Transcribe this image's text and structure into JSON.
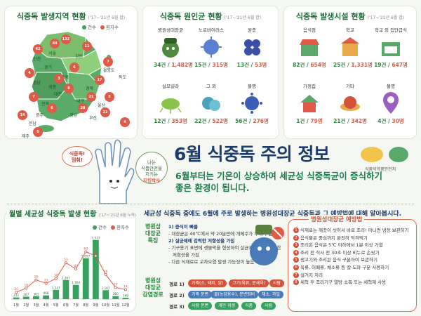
{
  "panels": {
    "region": {
      "title": "식중독 발생지역 현황",
      "sub": "('17~'21년 6월 합)",
      "legend_cases": "건수",
      "legend_patients": "환자수",
      "regions": [
        "인천",
        "서울",
        "경기",
        "강원",
        "충북",
        "충남",
        "세종",
        "대전",
        "경북",
        "대구",
        "전북",
        "울산",
        "광주",
        "경남",
        "부산",
        "전남",
        "제주",
        "울릉도",
        "독도"
      ],
      "counts": [
        "42",
        "84",
        "132",
        "11",
        "6",
        "4",
        "3",
        "8",
        "17",
        "21",
        "7",
        "5",
        "6",
        "28",
        "23",
        "14",
        "5",
        "7",
        "4"
      ]
    },
    "pathogen": {
      "title": "식중독 원인균 현황",
      "sub": "('17~'21년 6월 합)",
      "items": [
        {
          "name": "병원성대장균",
          "cases": "34건",
          "patients": "1,482명"
        },
        {
          "name": "노로바이러스",
          "cases": "15건",
          "patients": "315명"
        },
        {
          "name": "원충",
          "cases": "13건",
          "patients": "53명"
        },
        {
          "name": "살모넬라",
          "cases": "12건",
          "patients": "353명"
        },
        {
          "name": "그 외",
          "cases": "22건",
          "patients": "522명"
        },
        {
          "name": "불명",
          "cases": "56건",
          "patients": "276명"
        }
      ]
    },
    "facility": {
      "title": "식중독 발생시설 현황",
      "sub": "('17~'21년 6월 합)",
      "items": [
        {
          "name": "음식점",
          "cases": "82건",
          "patients": "654명"
        },
        {
          "name": "학교",
          "cases": "25건",
          "patients": "1,331명"
        },
        {
          "name": "학교 외 집단급식",
          "cases": "19건",
          "patients": "647명"
        },
        {
          "name": "가정집",
          "cases": "1건",
          "patients": "79명"
        },
        {
          "name": "기타",
          "cases": "21건",
          "patients": "342명"
        },
        {
          "name": "불명",
          "cases": "4건",
          "patients": "30명"
        }
      ]
    }
  },
  "banner": {
    "title": "6월 식중독 주의 정보",
    "sub_line1": "6월부터는 기온이 상승하여 세균성 식중독균이 증식하기",
    "sub_line2": "좋은 환경이 됩니다.",
    "bubble_left_1": "식중독!",
    "bubble_left_2": "멈춰!",
    "bubble_right_1": "나는",
    "bubble_right_2": "식품안전을",
    "bubble_right_3": "지키는",
    "bubble_right_4": "지킴박사",
    "org": "식품의약품안전처"
  },
  "monthly": {
    "title": "월별 세균성 식중독 발생 현황",
    "sub": "('17~'21년 6월 누적)",
    "legend_cases": "건수",
    "legend_patients": "환자수"
  },
  "chart_data": {
    "type": "bar",
    "title": "월별 세균성 식중독 발생 현황",
    "categories": [
      "1월",
      "2월",
      "3월",
      "4월",
      "5월",
      "6월",
      "7월",
      "8월",
      "9월",
      "10월",
      "11월",
      "12월"
    ],
    "series": [
      {
        "name": "건수",
        "values": [
          10,
          16,
          28,
          23,
          30,
          53,
          44,
          69,
          63,
          36,
          17,
          14
        ]
      },
      {
        "name": "환자수",
        "values": [
          212,
          307,
          361,
          468,
          1147,
          2367,
          1764,
          5057,
          7317,
          1107,
          380,
          169
        ]
      }
    ],
    "bar_labels": [
      "212",
      "307",
      "361",
      "468",
      "1,147",
      "2,367",
      "1,764",
      "5,057",
      "7,317",
      "1,107",
      "380",
      "169"
    ],
    "line_labels": [
      "10",
      "16",
      "28",
      "23",
      "30",
      "53",
      "44",
      "69",
      "63",
      "36",
      "17",
      "14"
    ],
    "ylim": [
      0,
      8000
    ]
  },
  "info": {
    "intro": "세균성 식중독 중에도 6월에 주로 발생하는 병원성대장균 식중독과 그 예방법에 대해 알아봅시다.",
    "feature_head": "병원성 대장균 특징",
    "f1_title": "1) 증식이 빠름",
    "f1_text": "- 대장균은 40℃에서 약 20분만에 개체수가 두배가 됨",
    "f2_title": "2) 살균제에 강력한 저항성을 가짐",
    "f2_text1": "- 기구용기 표면에 생물막을 형성하여 살균제 등에도 강력한",
    "f2_text2": "저항성을 가짐",
    "f2_text3": "- 다른 식재료로 교차오염 발생 가능성이 높음",
    "route_head": "병원성 대장균 감염경로",
    "routes": [
      {
        "label": "경로 1)",
        "chips": [
          "가축(소, 돼지, 닭)",
          "고기(육류, 분쇄육)",
          "사람"
        ]
      },
      {
        "label": "경로 2)",
        "chips": [
          "가축 분변",
          "물(농업용수), 분변퇴비",
          "채소, 과일",
          "사람"
        ]
      },
      {
        "label": "경로 3)",
        "chips": [
          "사람 분변",
          "개인 위생",
          "식품",
          "사람"
        ]
      }
    ]
  },
  "prevention": {
    "title": "병원성대장균 예방법",
    "items": [
      "식재료는 깨끗이 씻어서 바로 조리! 아니면 냉장 보관하기",
      "음식물은 중심까지 완전히 익혀먹기",
      "조리된 음식은 5℃ 이하에서 1분 이상 가열",
      "조리 전 식사 전 30초 이상 비누로 손씻기",
      "생고기와 조리된 음식 구분하여 보관하기",
      "육류, 어패류, 채소류 등 칼·도마 구분 사용하기",
      "설거지 처리",
      "세척 후 조리기구 열탕 소독 또는 세척제 사용"
    ]
  },
  "colors": {
    "green": "#2b8a3e",
    "red": "#e05a47",
    "navy": "#1d3b6b",
    "bar": "#3aa060"
  }
}
